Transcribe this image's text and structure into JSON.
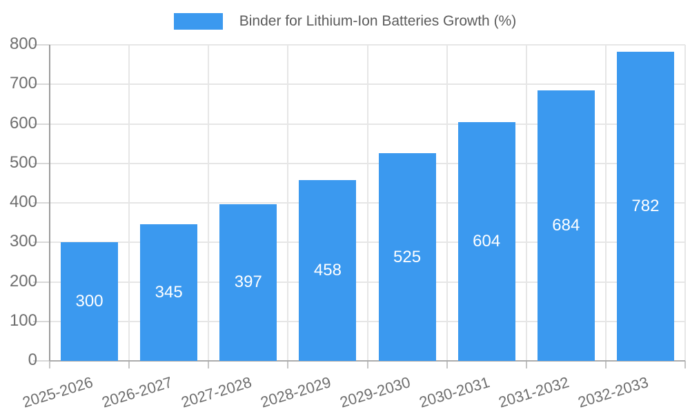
{
  "chart_data": {
    "type": "bar",
    "title": "Binder for Lithium-Ion Batteries Growth (%)",
    "categories": [
      "2025-2026",
      "2026-2027",
      "2027-2028",
      "2028-2029",
      "2029-2030",
      "2030-2031",
      "2031-2032",
      "2032-2033"
    ],
    "values": [
      300,
      345,
      397,
      458,
      525,
      604,
      684,
      782
    ],
    "xlabel": "",
    "ylabel": "",
    "ylim": [
      0,
      800
    ],
    "y_ticks": [
      0,
      100,
      200,
      300,
      400,
      500,
      600,
      700,
      800
    ],
    "grid": true,
    "legend_position": "top",
    "value_labels": "inside-center",
    "colors": {
      "bar": "#3B99EF",
      "value_label": "#FFFFFF",
      "axis_text": "#6E6E6E",
      "legend_text": "#5C5C5C",
      "gridline": "#E6E6E6",
      "background": "#FFFFFF"
    }
  }
}
